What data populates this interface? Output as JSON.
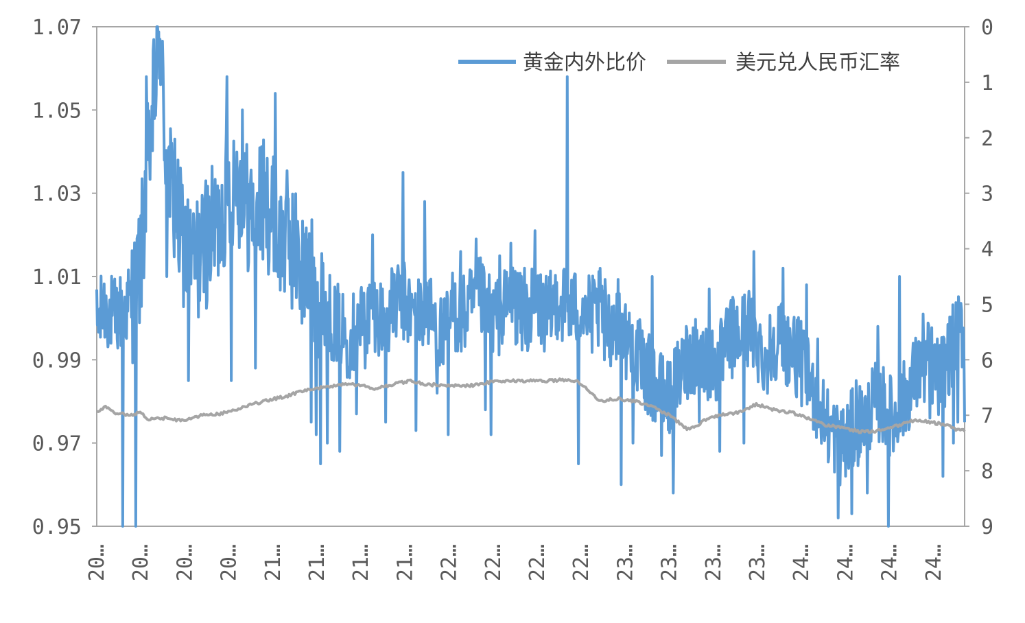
{
  "chart_data": {
    "type": "line",
    "title": "",
    "xlabel": "",
    "ylabel": "",
    "x_tick_labels": [
      "20…",
      "20…",
      "20…",
      "20…",
      "21…",
      "21…",
      "21…",
      "21…",
      "22…",
      "22…",
      "22…",
      "22…",
      "23…",
      "23…",
      "23…",
      "23…",
      "24…",
      "24…",
      "24…",
      "24…"
    ],
    "y_left": {
      "ylim": [
        0.95,
        1.07
      ],
      "ticks": [
        "1.07",
        "1.05",
        "1.03",
        "1.01",
        "0.99",
        "0.97",
        "0.95"
      ]
    },
    "y_right": {
      "ylim": [
        0,
        9
      ],
      "ticks": [
        "0",
        "1",
        "2",
        "3",
        "4",
        "5",
        "6",
        "7",
        "8",
        "9"
      ],
      "reversed": true
    },
    "grid": false,
    "legend": {
      "placement": "top-right"
    },
    "colors": {
      "gold": "#5b9bd5",
      "fx": "#a5a5a5",
      "axis": "#a6a6a6",
      "text": "#595959"
    },
    "series": [
      {
        "name": "黄金内外比价",
        "axis": "left",
        "x_range": [
          0,
          1
        ],
        "keyframes": [
          [
            0.0,
            0.998
          ],
          [
            0.01,
            1.003
          ],
          [
            0.02,
            1.0
          ],
          [
            0.03,
            1.002
          ],
          [
            0.04,
            1.004
          ],
          [
            0.05,
            1.012
          ],
          [
            0.06,
            1.04
          ],
          [
            0.066,
            1.052
          ],
          [
            0.072,
            1.066
          ],
          [
            0.08,
            1.04
          ],
          [
            0.09,
            1.025
          ],
          [
            0.1,
            1.018
          ],
          [
            0.11,
            1.013
          ],
          [
            0.12,
            1.015
          ],
          [
            0.13,
            1.02
          ],
          [
            0.14,
            1.022
          ],
          [
            0.15,
            1.03
          ],
          [
            0.16,
            1.035
          ],
          [
            0.17,
            1.028
          ],
          [
            0.18,
            1.025
          ],
          [
            0.19,
            1.028
          ],
          [
            0.2,
            1.026
          ],
          [
            0.21,
            1.018
          ],
          [
            0.22,
            1.02
          ],
          [
            0.23,
            1.015
          ],
          [
            0.24,
            1.01
          ],
          [
            0.25,
            1.008
          ],
          [
            0.26,
            1.005
          ],
          [
            0.27,
            1.0
          ],
          [
            0.28,
            0.998
          ],
          [
            0.29,
            0.995
          ],
          [
            0.3,
            0.998
          ],
          [
            0.31,
            1.0
          ],
          [
            0.32,
            1.002
          ],
          [
            0.33,
            1.0
          ],
          [
            0.34,
            1.002
          ],
          [
            0.35,
            1.005
          ],
          [
            0.36,
            1.002
          ],
          [
            0.37,
            1.0
          ],
          [
            0.38,
            1.003
          ],
          [
            0.39,
            0.998
          ],
          [
            0.4,
            0.995
          ],
          [
            0.41,
            1.002
          ],
          [
            0.42,
            1.0
          ],
          [
            0.43,
            1.002
          ],
          [
            0.44,
            1.005
          ],
          [
            0.45,
            1.003
          ],
          [
            0.46,
            1.0
          ],
          [
            0.47,
            1.002
          ],
          [
            0.48,
            1.005
          ],
          [
            0.49,
            1.0
          ],
          [
            0.5,
            1.002
          ],
          [
            0.51,
            1.003
          ],
          [
            0.52,
            1.0
          ],
          [
            0.53,
            1.005
          ],
          [
            0.54,
            1.003
          ],
          [
            0.55,
            1.002
          ],
          [
            0.56,
            1.003
          ],
          [
            0.57,
            1.0
          ],
          [
            0.58,
            1.002
          ],
          [
            0.59,
            0.998
          ],
          [
            0.6,
            1.0
          ],
          [
            0.61,
            0.995
          ],
          [
            0.62,
            0.992
          ],
          [
            0.63,
            0.988
          ],
          [
            0.64,
            0.985
          ],
          [
            0.65,
            0.982
          ],
          [
            0.66,
            0.98
          ],
          [
            0.67,
            0.985
          ],
          [
            0.68,
            0.99
          ],
          [
            0.69,
            0.992
          ],
          [
            0.7,
            0.99
          ],
          [
            0.71,
            0.988
          ],
          [
            0.72,
            0.99
          ],
          [
            0.73,
            0.995
          ],
          [
            0.74,
            0.995
          ],
          [
            0.75,
            0.998
          ],
          [
            0.76,
            0.995
          ],
          [
            0.77,
            0.99
          ],
          [
            0.78,
            0.995
          ],
          [
            0.79,
            0.995
          ],
          [
            0.8,
            0.992
          ],
          [
            0.81,
            0.99
          ],
          [
            0.82,
            0.985
          ],
          [
            0.83,
            0.98
          ],
          [
            0.84,
            0.975
          ],
          [
            0.85,
            0.972
          ],
          [
            0.86,
            0.968
          ],
          [
            0.87,
            0.973
          ],
          [
            0.88,
            0.975
          ],
          [
            0.89,
            0.978
          ],
          [
            0.9,
            0.98
          ],
          [
            0.91,
            0.978
          ],
          [
            0.92,
            0.975
          ],
          [
            0.93,
            0.98
          ],
          [
            0.94,
            0.985
          ],
          [
            0.95,
            0.988
          ],
          [
            0.96,
            0.99
          ],
          [
            0.97,
            0.985
          ],
          [
            0.98,
            0.99
          ],
          [
            0.99,
            0.995
          ],
          [
            1.0,
            0.998
          ]
        ],
        "spikes": [
          [
            0.03,
            0.95
          ],
          [
            0.045,
            0.95
          ],
          [
            0.057,
            1.058
          ],
          [
            0.061,
            1.041
          ],
          [
            0.067,
            1.063
          ],
          [
            0.073,
            1.067
          ],
          [
            0.081,
            1.01
          ],
          [
            0.09,
            1.043
          ],
          [
            0.106,
            0.985
          ],
          [
            0.118,
            1.025
          ],
          [
            0.126,
            1.033
          ],
          [
            0.15,
            1.058
          ],
          [
            0.155,
            0.985
          ],
          [
            0.168,
            1.05
          ],
          [
            0.183,
            0.988
          ],
          [
            0.195,
            1.033
          ],
          [
            0.206,
            1.054
          ],
          [
            0.218,
            1.028
          ],
          [
            0.232,
            1.02
          ],
          [
            0.247,
            0.975
          ],
          [
            0.253,
            0.972
          ],
          [
            0.258,
            0.965
          ],
          [
            0.266,
            0.97
          ],
          [
            0.28,
            0.968
          ],
          [
            0.299,
            0.977
          ],
          [
            0.309,
            0.988
          ],
          [
            0.318,
            1.02
          ],
          [
            0.333,
            0.975
          ],
          [
            0.353,
            1.035
          ],
          [
            0.368,
            0.973
          ],
          [
            0.378,
            1.028
          ],
          [
            0.392,
            0.982
          ],
          [
            0.405,
            0.972
          ],
          [
            0.419,
            1.016
          ],
          [
            0.437,
            1.019
          ],
          [
            0.448,
            0.978
          ],
          [
            0.454,
            0.972
          ],
          [
            0.464,
            1.015
          ],
          [
            0.477,
            1.018
          ],
          [
            0.493,
            1.012
          ],
          [
            0.505,
            1.021
          ],
          [
            0.521,
            1.0
          ],
          [
            0.542,
            1.058
          ],
          [
            0.555,
            0.965
          ],
          [
            0.566,
            1.0
          ],
          [
            0.585,
            0.99
          ],
          [
            0.604,
            0.96
          ],
          [
            0.618,
            0.97
          ],
          [
            0.64,
            1.01
          ],
          [
            0.651,
            0.967
          ],
          [
            0.664,
            0.958
          ],
          [
            0.68,
            0.997
          ],
          [
            0.694,
            0.975
          ],
          [
            0.706,
            1.007
          ],
          [
            0.718,
            0.968
          ],
          [
            0.733,
            1.005
          ],
          [
            0.746,
            0.97
          ],
          [
            0.757,
            1.016
          ],
          [
            0.775,
            0.988
          ],
          [
            0.791,
            1.012
          ],
          [
            0.805,
            0.985
          ],
          [
            0.818,
            1.008
          ],
          [
            0.831,
            0.995
          ],
          [
            0.845,
            0.976
          ],
          [
            0.854,
            0.952
          ],
          [
            0.86,
            0.978
          ],
          [
            0.87,
            0.953
          ],
          [
            0.875,
            0.985
          ],
          [
            0.888,
            0.958
          ],
          [
            0.9,
            0.998
          ],
          [
            0.912,
            0.95
          ],
          [
            0.925,
            1.01
          ],
          [
            0.938,
            0.978
          ],
          [
            0.952,
            1.001
          ],
          [
            0.96,
            0.976
          ],
          [
            0.975,
            0.962
          ],
          [
            0.987,
            0.97
          ],
          [
            0.992,
            0.975
          ],
          [
            1.0,
            0.975
          ]
        ]
      },
      {
        "name": "美元兑人民币汇率",
        "axis": "right",
        "x_range": [
          0,
          1
        ],
        "points": [
          [
            0.0,
            6.95
          ],
          [
            0.01,
            6.85
          ],
          [
            0.02,
            6.95
          ],
          [
            0.04,
            7.0
          ],
          [
            0.05,
            6.95
          ],
          [
            0.06,
            7.08
          ],
          [
            0.08,
            7.05
          ],
          [
            0.1,
            7.1
          ],
          [
            0.11,
            7.05
          ],
          [
            0.12,
            7.0
          ],
          [
            0.14,
            6.98
          ],
          [
            0.16,
            6.9
          ],
          [
            0.18,
            6.8
          ],
          [
            0.2,
            6.72
          ],
          [
            0.22,
            6.65
          ],
          [
            0.24,
            6.55
          ],
          [
            0.26,
            6.5
          ],
          [
            0.28,
            6.45
          ],
          [
            0.3,
            6.45
          ],
          [
            0.32,
            6.52
          ],
          [
            0.34,
            6.45
          ],
          [
            0.36,
            6.38
          ],
          [
            0.38,
            6.45
          ],
          [
            0.4,
            6.45
          ],
          [
            0.42,
            6.48
          ],
          [
            0.44,
            6.45
          ],
          [
            0.46,
            6.38
          ],
          [
            0.48,
            6.38
          ],
          [
            0.5,
            6.38
          ],
          [
            0.52,
            6.38
          ],
          [
            0.54,
            6.36
          ],
          [
            0.555,
            6.4
          ],
          [
            0.56,
            6.45
          ],
          [
            0.57,
            6.6
          ],
          [
            0.58,
            6.75
          ],
          [
            0.6,
            6.7
          ],
          [
            0.62,
            6.75
          ],
          [
            0.64,
            6.85
          ],
          [
            0.66,
            7.0
          ],
          [
            0.675,
            7.18
          ],
          [
            0.68,
            7.25
          ],
          [
            0.69,
            7.2
          ],
          [
            0.7,
            7.1
          ],
          [
            0.72,
            6.98
          ],
          [
            0.74,
            6.95
          ],
          [
            0.76,
            6.8
          ],
          [
            0.78,
            6.9
          ],
          [
            0.8,
            6.95
          ],
          [
            0.82,
            7.05
          ],
          [
            0.84,
            7.18
          ],
          [
            0.86,
            7.22
          ],
          [
            0.88,
            7.3
          ],
          [
            0.9,
            7.28
          ],
          [
            0.92,
            7.2
          ],
          [
            0.94,
            7.1
          ],
          [
            0.96,
            7.12
          ],
          [
            0.98,
            7.18
          ],
          [
            0.99,
            7.25
          ],
          [
            1.0,
            7.28
          ]
        ]
      }
    ]
  }
}
